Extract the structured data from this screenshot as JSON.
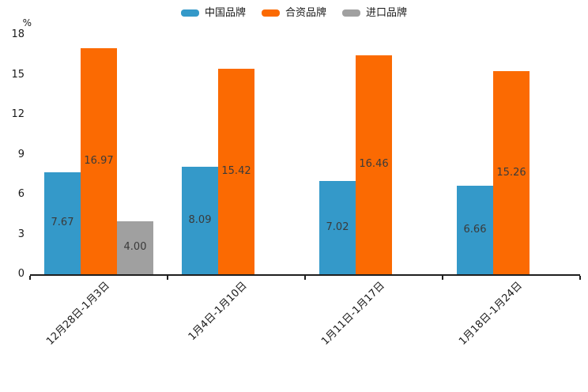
{
  "chart_data": {
    "type": "bar",
    "title": "",
    "xlabel": "",
    "ylabel": "%",
    "ylim": [
      0,
      18
    ],
    "yticks": [
      0,
      3,
      6,
      9,
      12,
      15,
      18
    ],
    "grid": false,
    "legend_position": "top-center",
    "categories": [
      "12月28日-1月3日",
      "1月4日-1月10日",
      "1月11日-1月17日",
      "1月18日-1月24日"
    ],
    "series": [
      {
        "key": "china-brand",
        "name": "中国品牌",
        "color": "#3499c9",
        "values": [
          7.67,
          8.09,
          7.02,
          6.66
        ]
      },
      {
        "key": "joint-venture-brand",
        "name": "合资品牌",
        "color": "#fb6a02",
        "values": [
          16.97,
          15.42,
          16.46,
          15.26
        ]
      },
      {
        "key": "import-brand",
        "name": "进口品牌",
        "color": "#a0a0a0",
        "values": [
          4.0,
          null,
          null,
          null
        ]
      }
    ],
    "value_label_decimals": 2,
    "axis_color": "#1f1f1f",
    "label_color": "#3a3a3a"
  }
}
